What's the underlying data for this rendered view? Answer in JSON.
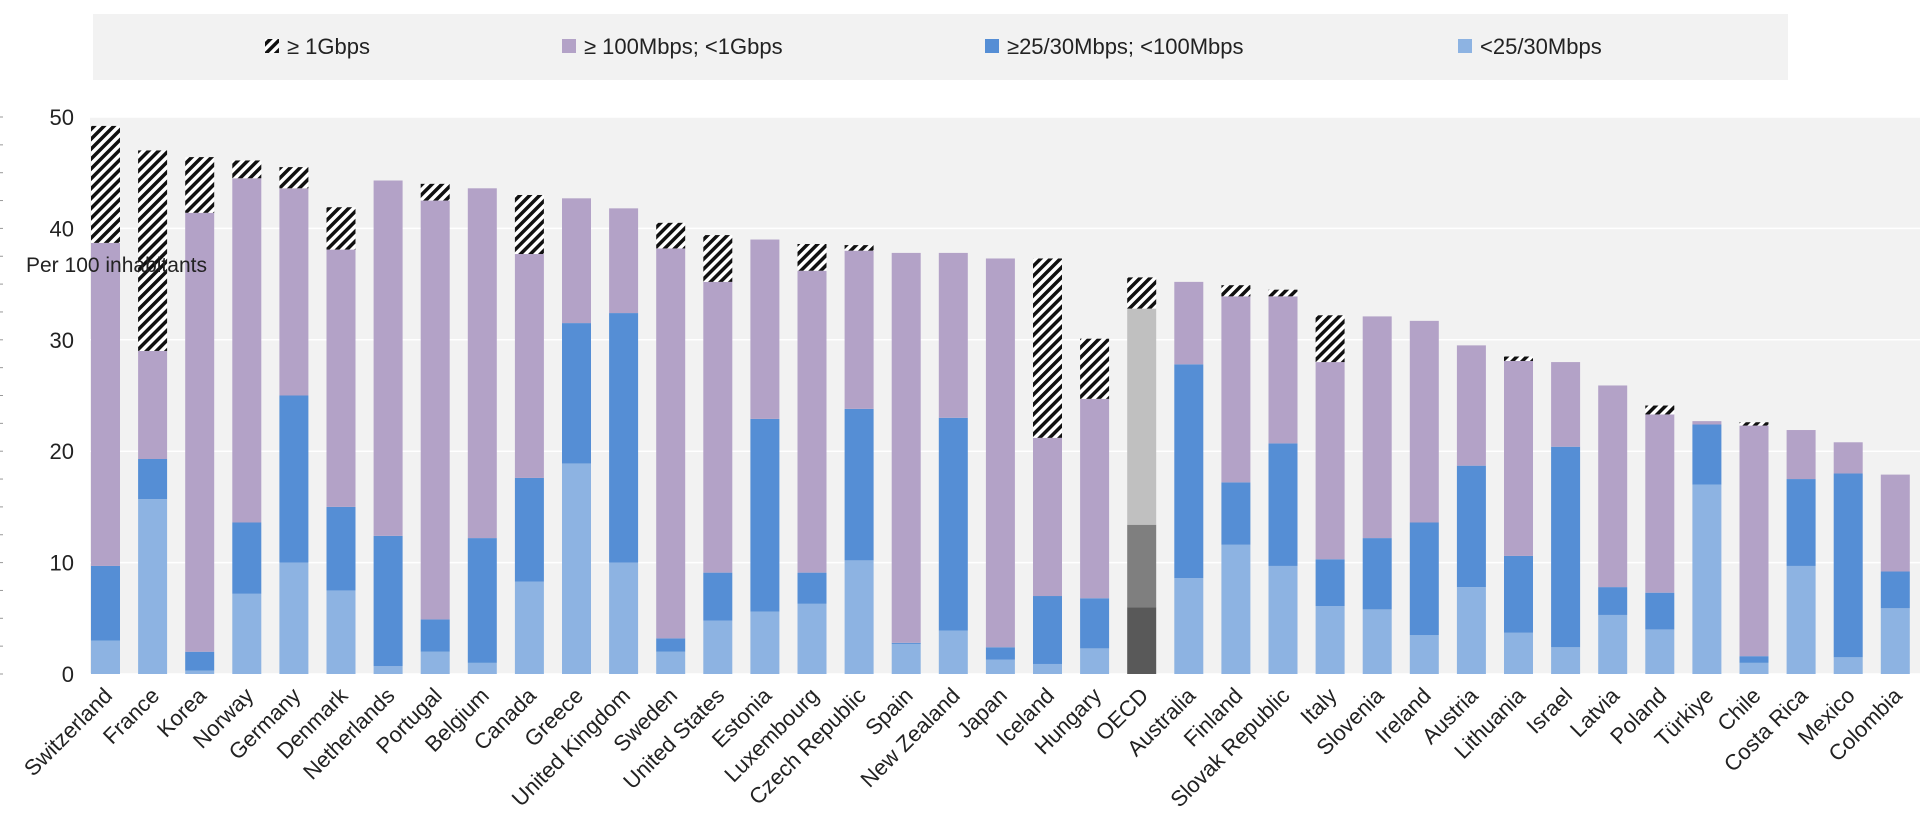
{
  "chart_data": {
    "type": "bar",
    "stacked": true,
    "ylabel": "Per 100 inhabitants",
    "ylim": [
      0,
      50
    ],
    "yticks": [
      0,
      10,
      20,
      30,
      40,
      50
    ],
    "grid": true,
    "legend_position": "top",
    "categories": [
      "Switzerland",
      "France",
      "Korea",
      "Norway",
      "Germany",
      "Denmark",
      "Netherlands",
      "Portugal",
      "Belgium",
      "Canada",
      "Greece",
      "United Kingdom",
      "Sweden",
      "United States",
      "Estonia",
      "Luxembourg",
      "Czech Republic",
      "Spain",
      "New Zealand",
      "Japan",
      "Iceland",
      "Hungary",
      "OECD",
      "Australia",
      "Finland",
      "Slovak Republic",
      "Italy",
      "Slovenia",
      "Ireland",
      "Austria",
      "Lithuania",
      "Israel",
      "Latvia",
      "Poland",
      "Türkiye",
      "Chile",
      "Costa Rica",
      "Mexico",
      "Colombia"
    ],
    "highlight_category": "OECD",
    "series": [
      {
        "name": "<25/30Mbps",
        "color": "#8db3e2",
        "highlight_color": "#595959",
        "values": [
          3.0,
          15.7,
          0.3,
          7.2,
          10.0,
          7.5,
          0.7,
          2.0,
          1.0,
          8.3,
          18.9,
          10.0,
          2.0,
          4.8,
          5.6,
          6.3,
          10.2,
          2.7,
          3.9,
          1.3,
          0.9,
          2.3,
          6.0,
          8.6,
          11.6,
          9.7,
          6.1,
          5.8,
          3.5,
          7.8,
          3.7,
          2.4,
          5.3,
          4.0,
          17.0,
          1.0,
          9.7,
          1.5,
          5.9
        ]
      },
      {
        "name": "≥25/30Mbps;  <100Mbps",
        "color": "#558ed5",
        "highlight_color": "#7f7f7f",
        "values": [
          6.7,
          3.6,
          1.7,
          6.4,
          15.0,
          7.5,
          11.7,
          2.9,
          11.2,
          9.3,
          12.6,
          22.4,
          1.2,
          4.3,
          17.3,
          2.8,
          13.6,
          0.1,
          19.1,
          1.1,
          6.1,
          4.5,
          7.4,
          19.2,
          5.6,
          11.0,
          4.2,
          6.4,
          10.1,
          10.9,
          6.9,
          18.0,
          2.5,
          3.3,
          5.4,
          0.6,
          7.8,
          16.5,
          3.3
        ]
      },
      {
        "name": "≥ 100Mbps; <1Gbps",
        "color": "#b3a2c7",
        "highlight_color": "#c0c0c0",
        "values": [
          29.0,
          9.7,
          39.4,
          30.9,
          18.6,
          23.1,
          31.9,
          37.6,
          31.4,
          20.1,
          11.2,
          9.4,
          35.0,
          26.1,
          16.1,
          27.1,
          14.2,
          35.0,
          14.8,
          34.9,
          14.2,
          17.9,
          19.4,
          7.4,
          16.7,
          13.2,
          17.7,
          19.9,
          18.1,
          10.8,
          17.5,
          7.6,
          18.1,
          16.0,
          0.3,
          20.7,
          4.4,
          2.8,
          8.7
        ]
      },
      {
        "name": "≥ 1Gbps",
        "color": "#000000",
        "pattern": "diagonal-hatch",
        "values": [
          10.5,
          18.0,
          5.0,
          1.6,
          1.9,
          3.8,
          0.0,
          1.5,
          0.0,
          5.3,
          0.0,
          0.0,
          2.3,
          4.2,
          0.0,
          2.4,
          0.5,
          0.0,
          0.0,
          0.0,
          16.1,
          5.4,
          2.8,
          0.0,
          1.0,
          0.6,
          4.2,
          0.0,
          0.0,
          0.0,
          0.4,
          0.0,
          0.0,
          0.8,
          0.0,
          0.3,
          0.0,
          0.0,
          0.0
        ]
      }
    ]
  }
}
